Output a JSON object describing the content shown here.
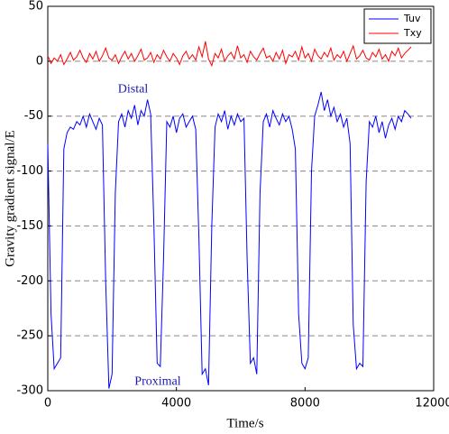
{
  "chart_data": {
    "type": "line",
    "xlabel": "Time/s",
    "ylabel": "Gravity gradient signal/E",
    "annotations": [
      "Distal",
      "Proximal"
    ],
    "xlim": [
      0,
      12000
    ],
    "xticks": [
      0,
      4000,
      8000,
      12000
    ],
    "ylim": [
      -300,
      50
    ],
    "yticks": [
      50,
      0,
      -50,
      -100,
      -150,
      -200,
      -250,
      -300
    ],
    "grid": true,
    "legend": "upper right",
    "x": [
      0,
      100,
      200,
      300,
      400,
      500,
      600,
      700,
      800,
      900,
      1000,
      1100,
      1200,
      1300,
      1400,
      1500,
      1600,
      1700,
      1800,
      1900,
      2000,
      2100,
      2200,
      2300,
      2400,
      2500,
      2600,
      2700,
      2800,
      2900,
      3000,
      3100,
      3200,
      3300,
      3400,
      3500,
      3600,
      3700,
      3800,
      3900,
      4000,
      4100,
      4200,
      4300,
      4400,
      4500,
      4600,
      4700,
      4800,
      4900,
      5000,
      5100,
      5200,
      5300,
      5400,
      5500,
      5600,
      5700,
      5800,
      5900,
      6000,
      6100,
      6200,
      6300,
      6400,
      6500,
      6600,
      6700,
      6800,
      6900,
      7000,
      7100,
      7200,
      7300,
      7400,
      7500,
      7600,
      7700,
      7800,
      7900,
      8000,
      8100,
      8200,
      8300,
      8400,
      8500,
      8600,
      8700,
      8800,
      8900,
      9000,
      9100,
      9200,
      9300,
      9400,
      9500,
      9600,
      9700,
      9800,
      9900,
      10000,
      10100,
      10200,
      10300,
      10400,
      10500,
      10600,
      10700,
      10800,
      10900,
      11000,
      11100,
      11200,
      11300
    ],
    "series": [
      {
        "name": "Tuv",
        "color": "#0000ff",
        "values": [
          -75,
          -230,
          -280,
          -275,
          -270,
          -80,
          -65,
          -60,
          -62,
          -55,
          -58,
          -50,
          -60,
          -48,
          -55,
          -62,
          -52,
          -58,
          -200,
          -298,
          -285,
          -120,
          -55,
          -48,
          -60,
          -45,
          -52,
          -40,
          -58,
          -45,
          -50,
          -35,
          -48,
          -150,
          -275,
          -278,
          -180,
          -55,
          -60,
          -50,
          -65,
          -52,
          -48,
          -60,
          -55,
          -50,
          -62,
          -160,
          -285,
          -280,
          -295,
          -150,
          -60,
          -48,
          -55,
          -45,
          -62,
          -50,
          -58,
          -48,
          -55,
          -52,
          -180,
          -275,
          -270,
          -285,
          -120,
          -55,
          -48,
          -60,
          -45,
          -52,
          -58,
          -48,
          -55,
          -50,
          -62,
          -80,
          -230,
          -275,
          -280,
          -270,
          -100,
          -50,
          -40,
          -28,
          -45,
          -35,
          -50,
          -42,
          -55,
          -48,
          -60,
          -52,
          -75,
          -240,
          -280,
          -275,
          -278,
          -110,
          -55,
          -60,
          -50,
          -65,
          -55,
          -70,
          -58,
          -52,
          -62,
          -50,
          -55,
          -45,
          -48,
          -52
        ]
      },
      {
        "name": "Txy",
        "color": "#ff0000",
        "values": [
          5,
          -2,
          3,
          0,
          6,
          -3,
          2,
          8,
          1,
          4,
          10,
          3,
          -1,
          7,
          2,
          9,
          0,
          5,
          12,
          3,
          1,
          6,
          -2,
          4,
          9,
          2,
          7,
          0,
          5,
          11,
          1,
          3,
          8,
          -1,
          6,
          2,
          10,
          4,
          0,
          7,
          3,
          -3,
          5,
          9,
          2,
          6,
          1,
          13,
          4,
          18,
          2,
          -4,
          7,
          3,
          11,
          0,
          5,
          8,
          2,
          14,
          3,
          6,
          -1,
          9,
          4,
          1,
          7,
          12,
          3,
          5,
          0,
          8,
          2,
          10,
          -2,
          6,
          4,
          9,
          1,
          13,
          3,
          7,
          0,
          11,
          5,
          2,
          8,
          4,
          12,
          1,
          6,
          3,
          9,
          0,
          7,
          14,
          2,
          5,
          10,
          3,
          1,
          8,
          4,
          11,
          2,
          6,
          0,
          9,
          5,
          12,
          3,
          7,
          10,
          13
        ]
      }
    ]
  }
}
